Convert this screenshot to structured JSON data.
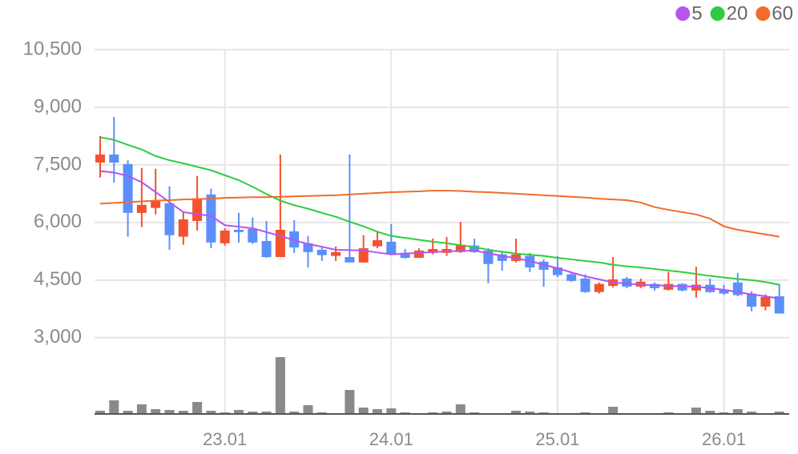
{
  "chart_data": {
    "type": "candlestick",
    "categories": [
      null,
      null,
      null,
      null,
      null,
      null,
      null,
      null,
      null,
      "23.01",
      null,
      null,
      null,
      null,
      null,
      null,
      null,
      null,
      null,
      null,
      null,
      "24.01",
      null,
      null,
      null,
      null,
      null,
      null,
      null,
      null,
      null,
      null,
      null,
      "25.01",
      null,
      null,
      null,
      null,
      null,
      null,
      null,
      null,
      null,
      null,
      null,
      "26.01",
      null,
      null,
      null,
      null
    ],
    "open": [
      7560,
      7770,
      7520,
      6250,
      6380,
      6500,
      5630,
      6040,
      6730,
      5460,
      5810,
      5830,
      5520,
      5100,
      5770,
      5460,
      5290,
      5130,
      5100,
      4960,
      5380,
      5500,
      5210,
      5080,
      5210,
      5210,
      5230,
      5400,
      5270,
      5170,
      5000,
      5130,
      4980,
      4830,
      4650,
      4540,
      4190,
      4350,
      4540,
      4330,
      4400,
      4250,
      4400,
      4230,
      4380,
      4250,
      4440,
      4150,
      3810,
      4080
    ],
    "high": [
      8250,
      8750,
      7620,
      7420,
      7400,
      6940,
      6270,
      7210,
      6880,
      5850,
      6250,
      6130,
      6040,
      7770,
      6060,
      5650,
      5380,
      5380,
      7770,
      5670,
      5750,
      5960,
      5310,
      5330,
      5580,
      5620,
      6020,
      5580,
      5330,
      5250,
      5580,
      5210,
      5040,
      5130,
      4710,
      4650,
      4440,
      5100,
      4580,
      4540,
      4440,
      4710,
      4420,
      4850,
      4540,
      4380,
      4690,
      4210,
      4130,
      4400
    ],
    "low": [
      7170,
      7040,
      5630,
      5880,
      6210,
      5290,
      5420,
      5790,
      5330,
      5400,
      5480,
      5440,
      5080,
      5100,
      5210,
      4830,
      5000,
      5000,
      4960,
      4960,
      5330,
      5170,
      5060,
      5080,
      5170,
      5130,
      5210,
      5210,
      4420,
      4750,
      4960,
      4710,
      4330,
      4580,
      4460,
      4170,
      4150,
      4310,
      4290,
      4290,
      4230,
      4230,
      4210,
      4040,
      4170,
      4110,
      4080,
      3690,
      3710,
      3630
    ],
    "close": [
      7770,
      7560,
      6250,
      6460,
      6580,
      5670,
      6080,
      6630,
      5480,
      5790,
      5750,
      5480,
      5100,
      5810,
      5350,
      5230,
      5150,
      5230,
      4960,
      5330,
      5540,
      5190,
      5080,
      5270,
      5310,
      5310,
      5420,
      5230,
      4920,
      5000,
      5170,
      4830,
      4770,
      4630,
      4480,
      4190,
      4400,
      4520,
      4330,
      4460,
      4290,
      4400,
      4230,
      4380,
      4190,
      4150,
      4110,
      3810,
      4060,
      3630
    ],
    "up_color": "#f4522e",
    "down_color": "#5b8ff9",
    "series": [
      {
        "name": "5",
        "color": "#b455f0",
        "values": [
          7340,
          7300,
          7210,
          7050,
          6790,
          6530,
          6270,
          6220,
          6170,
          5930,
          5890,
          5850,
          5750,
          5650,
          5540,
          5440,
          5370,
          5290,
          5280,
          5270,
          5220,
          5170,
          5190,
          5210,
          5230,
          5250,
          5260,
          5270,
          5200,
          5130,
          5070,
          5000,
          4900,
          4810,
          4700,
          4600,
          4520,
          4440,
          4410,
          4380,
          4370,
          4350,
          4340,
          4330,
          4290,
          4250,
          4190,
          4130,
          4080,
          4020
        ]
      },
      {
        "name": "20",
        "color": "#2ecc40",
        "values": [
          8220,
          8150,
          8020,
          7900,
          7730,
          7620,
          7540,
          7450,
          7360,
          7230,
          7100,
          6930,
          6740,
          6570,
          6450,
          6360,
          6250,
          6150,
          6020,
          5900,
          5760,
          5650,
          5600,
          5550,
          5500,
          5460,
          5410,
          5360,
          5290,
          5240,
          5190,
          5160,
          5130,
          5080,
          5040,
          5000,
          4960,
          4900,
          4860,
          4830,
          4790,
          4750,
          4710,
          4660,
          4610,
          4570,
          4530,
          4500,
          4450,
          4380
        ]
      },
      {
        "name": "60",
        "color": "#f26b2a",
        "values": [
          6490,
          6510,
          6530,
          6550,
          6570,
          6580,
          6600,
          6610,
          6620,
          6640,
          6650,
          6660,
          6660,
          6670,
          6680,
          6690,
          6700,
          6710,
          6730,
          6750,
          6770,
          6790,
          6800,
          6810,
          6830,
          6830,
          6820,
          6800,
          6790,
          6770,
          6750,
          6730,
          6710,
          6690,
          6670,
          6650,
          6620,
          6600,
          6580,
          6520,
          6400,
          6330,
          6270,
          6210,
          6100,
          5900,
          5810,
          5750,
          5690,
          5630
        ]
      }
    ],
    "volume": [
      4,
      17,
      4,
      12,
      6,
      5,
      4,
      15,
      4,
      2,
      5,
      3,
      3,
      71,
      3,
      11,
      2,
      1,
      30,
      8,
      6,
      7,
      2,
      1,
      2,
      3,
      12,
      2,
      1,
      1,
      4,
      3,
      2,
      1,
      1,
      2,
      1,
      9,
      1,
      1,
      1,
      2,
      1,
      8,
      4,
      2,
      6,
      3,
      1,
      3
    ],
    "volume_color": "#8a8a8a",
    "volume_ylim": [
      0,
      80
    ],
    "ylim": [
      2600,
      10800
    ],
    "yticks": [
      {
        "value": 3000,
        "label": "3,000"
      },
      {
        "value": 4500,
        "label": "4,500"
      },
      {
        "value": 6000,
        "label": "6,000"
      },
      {
        "value": 7500,
        "label": "7,500"
      },
      {
        "value": 9000,
        "label": "9,000"
      },
      {
        "value": 10500,
        "label": "10,500"
      }
    ],
    "grid": true,
    "legend": "top-right"
  }
}
